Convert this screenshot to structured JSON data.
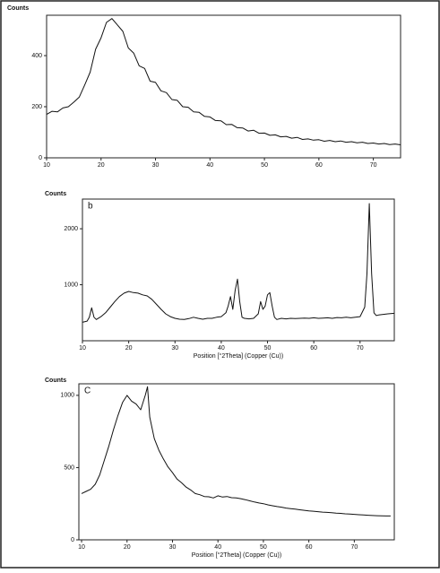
{
  "chart_data": [
    {
      "type": "line",
      "y_label": "Counts",
      "xlim": [
        10,
        75
      ],
      "ylim": [
        0,
        558
      ],
      "xticks": [
        10,
        20,
        30,
        40,
        50,
        60,
        70
      ],
      "yticks": [
        0,
        200,
        400
      ],
      "series": [
        {
          "color": "#111111",
          "x": [
            10,
            11,
            12,
            13,
            14,
            15,
            16,
            17,
            18,
            19,
            20,
            21,
            22,
            23,
            24,
            25,
            26,
            27,
            28,
            29,
            30,
            31,
            32,
            33,
            34,
            35,
            36,
            37,
            38,
            39,
            40,
            41,
            42,
            43,
            44,
            45,
            46,
            47,
            48,
            49,
            50,
            51,
            52,
            53,
            54,
            55,
            56,
            57,
            58,
            59,
            60,
            61,
            62,
            63,
            64,
            65,
            66,
            67,
            68,
            69,
            70,
            71,
            72,
            73,
            74,
            75
          ],
          "values": [
            170,
            182,
            180,
            195,
            200,
            218,
            238,
            285,
            335,
            425,
            470,
            530,
            545,
            520,
            495,
            430,
            410,
            360,
            350,
            300,
            295,
            262,
            255,
            228,
            225,
            200,
            198,
            180,
            178,
            162,
            160,
            146,
            145,
            130,
            131,
            118,
            117,
            105,
            108,
            96,
            97,
            88,
            90,
            82,
            84,
            77,
            80,
            72,
            74,
            69,
            71,
            65,
            68,
            63,
            66,
            61,
            63,
            59,
            61,
            56,
            58,
            54,
            56,
            52,
            54,
            51
          ]
        }
      ]
    },
    {
      "type": "line",
      "y_label": "Counts",
      "annotation": "b",
      "x_label": "Position [°2Theta] (Copper (Cu))",
      "xlim": [
        10,
        77.4
      ],
      "ylim": [
        0,
        2530
      ],
      "xticks": [
        10,
        20,
        30,
        40,
        50,
        60,
        70
      ],
      "yticks": [
        1000,
        2000
      ],
      "series": [
        {
          "color": "#111111",
          "x": [
            10,
            11,
            11.5,
            12,
            12.5,
            13,
            14,
            15,
            16,
            17,
            18,
            19,
            20,
            21,
            22,
            23,
            24,
            25,
            26,
            27,
            28,
            29,
            30,
            31,
            32,
            33,
            34,
            35,
            36,
            37,
            38,
            39,
            40,
            41,
            41.5,
            42,
            42.5,
            43,
            43.5,
            44,
            44.5,
            45,
            46,
            47,
            48,
            48.5,
            49,
            49.5,
            50,
            50.5,
            51,
            51.5,
            52,
            53,
            54,
            55,
            56,
            57,
            58,
            59,
            60,
            61,
            62,
            63,
            64,
            65,
            66,
            67,
            68,
            69,
            70,
            71,
            71.5,
            72,
            72.5,
            73,
            73.5,
            74,
            75,
            76,
            77.4
          ],
          "values": [
            330,
            350,
            420,
            590,
            420,
            380,
            430,
            500,
            600,
            700,
            790,
            850,
            880,
            860,
            850,
            820,
            800,
            740,
            650,
            560,
            480,
            430,
            400,
            385,
            380,
            395,
            420,
            400,
            385,
            400,
            400,
            420,
            430,
            500,
            620,
            790,
            560,
            900,
            1100,
            700,
            420,
            400,
            390,
            400,
            480,
            700,
            560,
            620,
            820,
            860,
            620,
            420,
            380,
            400,
            390,
            400,
            395,
            400,
            405,
            400,
            410,
            400,
            405,
            410,
            400,
            415,
            410,
            420,
            410,
            420,
            430,
            600,
            1200,
            2450,
            1200,
            500,
            450,
            460,
            470,
            480,
            490
          ]
        }
      ]
    },
    {
      "type": "line",
      "y_label": "Counts",
      "annotation": "C",
      "x_label": "Position [°2Theta] (Copper (Cu))",
      "xlim": [
        9.4,
        78.8
      ],
      "ylim": [
        0,
        1080
      ],
      "xticks": [
        10,
        20,
        30,
        40,
        50,
        60,
        70
      ],
      "yticks": [
        0,
        500,
        1000
      ],
      "series": [
        {
          "color": "#111111",
          "x": [
            10,
            11,
            12,
            13,
            14,
            15,
            16,
            17,
            18,
            19,
            20,
            21,
            22,
            23,
            24,
            24.5,
            25,
            26,
            27,
            28,
            29,
            30,
            31,
            32,
            33,
            34,
            35,
            36,
            37,
            38,
            39,
            40,
            41,
            42,
            43,
            44,
            45,
            46,
            47,
            48,
            49,
            50,
            51,
            52,
            53,
            54,
            55,
            56,
            57,
            58,
            59,
            60,
            61,
            62,
            63,
            64,
            65,
            66,
            67,
            68,
            69,
            70,
            71,
            72,
            73,
            74,
            75,
            76,
            77,
            78
          ],
          "values": [
            320,
            335,
            350,
            385,
            450,
            550,
            650,
            760,
            860,
            950,
            1000,
            960,
            940,
            900,
            1000,
            1060,
            850,
            700,
            620,
            560,
            505,
            465,
            420,
            395,
            365,
            345,
            320,
            312,
            300,
            298,
            290,
            305,
            296,
            300,
            292,
            290,
            285,
            278,
            270,
            262,
            255,
            250,
            242,
            236,
            230,
            226,
            220,
            216,
            212,
            208,
            204,
            200,
            198,
            195,
            192,
            190,
            188,
            185,
            183,
            180,
            178,
            176,
            174,
            172,
            170,
            168,
            167,
            166,
            165,
            165
          ]
        }
      ]
    }
  ]
}
